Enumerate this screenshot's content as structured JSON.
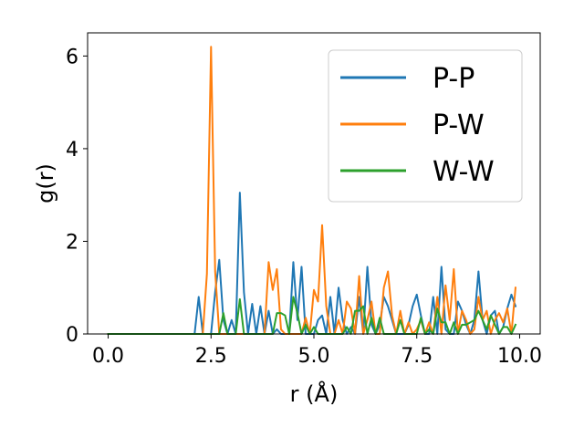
{
  "chart_data": {
    "type": "line",
    "xlabel": "r (Å)",
    "ylabel": "g(r)",
    "xlim": [
      -0.5,
      10.5
    ],
    "ylim": [
      0,
      6.5
    ],
    "xticks": [
      0.0,
      2.5,
      5.0,
      7.5,
      10.0
    ],
    "xtick_labels": [
      "0.0",
      "2.5",
      "5.0",
      "7.5",
      "10.0"
    ],
    "yticks": [
      0,
      2,
      4,
      6
    ],
    "ytick_labels": [
      "0",
      "2",
      "4",
      "6"
    ],
    "grid": false,
    "legend_position": "top-right",
    "colors": {
      "P-P": "#1f77b4",
      "P-W": "#ff7f0e",
      "W-W": "#2ca02c"
    },
    "series": [
      {
        "name": "P-P",
        "x": [
          0.0,
          2.1,
          2.2,
          2.3,
          2.4,
          2.5,
          2.6,
          2.7,
          2.8,
          2.9,
          3.0,
          3.1,
          3.2,
          3.3,
          3.4,
          3.5,
          3.6,
          3.7,
          3.8,
          3.9,
          4.0,
          4.1,
          4.2,
          4.3,
          4.4,
          4.5,
          4.6,
          4.7,
          4.8,
          4.9,
          5.0,
          5.1,
          5.2,
          5.3,
          5.4,
          5.5,
          5.6,
          5.7,
          5.8,
          5.9,
          6.0,
          6.1,
          6.2,
          6.3,
          6.4,
          6.5,
          6.6,
          6.7,
          6.8,
          6.9,
          7.0,
          7.1,
          7.2,
          7.3,
          7.4,
          7.5,
          7.6,
          7.7,
          7.8,
          7.9,
          8.0,
          8.1,
          8.2,
          8.3,
          8.4,
          8.5,
          8.6,
          8.7,
          8.8,
          8.9,
          9.0,
          9.1,
          9.2,
          9.3,
          9.4,
          9.5,
          9.6,
          9.7,
          9.8,
          9.9
        ],
        "y": [
          0.0,
          0.0,
          0.8,
          0.0,
          0.0,
          0.0,
          0.9,
          1.6,
          0.3,
          0.0,
          0.3,
          0.0,
          3.05,
          0.9,
          0.0,
          0.65,
          0.0,
          0.6,
          0.0,
          0.5,
          0.0,
          0.1,
          0.0,
          0.0,
          0.0,
          1.55,
          0.3,
          1.45,
          0.0,
          0.0,
          0.0,
          0.3,
          0.4,
          0.0,
          0.8,
          0.0,
          1.0,
          0.3,
          0.0,
          0.15,
          0.0,
          0.8,
          0.0,
          1.45,
          0.2,
          0.0,
          0.2,
          0.8,
          0.6,
          0.3,
          0.0,
          0.0,
          0.0,
          0.2,
          0.6,
          0.85,
          0.4,
          0.0,
          0.0,
          0.8,
          0.0,
          1.45,
          0.1,
          0.0,
          0.0,
          0.7,
          0.5,
          0.2,
          0.0,
          0.3,
          1.35,
          0.3,
          0.0,
          0.4,
          0.5,
          0.0,
          0.15,
          0.55,
          0.85,
          0.6
        ]
      },
      {
        "name": "P-W",
        "x": [
          0.0,
          2.3,
          2.4,
          2.5,
          2.6,
          2.7,
          2.8,
          2.9,
          3.0,
          3.1,
          3.2,
          3.3,
          3.4,
          3.5,
          3.6,
          3.7,
          3.8,
          3.9,
          4.0,
          4.1,
          4.2,
          4.3,
          4.4,
          4.5,
          4.6,
          4.7,
          4.8,
          4.9,
          5.0,
          5.1,
          5.2,
          5.3,
          5.4,
          5.5,
          5.6,
          5.7,
          5.8,
          5.9,
          6.0,
          6.1,
          6.2,
          6.3,
          6.4,
          6.5,
          6.6,
          6.7,
          6.8,
          6.9,
          7.0,
          7.1,
          7.2,
          7.3,
          7.4,
          7.5,
          7.6,
          7.7,
          7.8,
          7.9,
          8.0,
          8.1,
          8.2,
          8.3,
          8.4,
          8.5,
          8.6,
          8.7,
          8.8,
          8.9,
          9.0,
          9.1,
          9.2,
          9.3,
          9.4,
          9.5,
          9.6,
          9.7,
          9.8,
          9.9
        ],
        "y": [
          0.0,
          0.0,
          1.3,
          6.2,
          1.35,
          0.0,
          0.0,
          0.0,
          0.0,
          0.0,
          0.0,
          0.0,
          0.0,
          0.0,
          0.0,
          0.0,
          0.0,
          1.55,
          0.95,
          1.4,
          0.1,
          0.0,
          0.0,
          0.0,
          0.0,
          0.0,
          0.35,
          0.0,
          0.95,
          0.7,
          2.35,
          0.6,
          0.0,
          0.0,
          0.3,
          0.0,
          0.7,
          0.55,
          0.0,
          1.25,
          0.0,
          0.3,
          0.7,
          0.0,
          0.0,
          1.0,
          1.35,
          0.4,
          0.0,
          0.5,
          0.0,
          0.25,
          0.0,
          0.1,
          0.3,
          0.0,
          0.25,
          0.0,
          0.8,
          0.0,
          1.05,
          0.3,
          1.4,
          0.0,
          0.5,
          0.3,
          0.0,
          0.1,
          0.8,
          0.3,
          0.5,
          0.0,
          0.3,
          0.45,
          0.25,
          0.55,
          0.0,
          1.0
        ]
      },
      {
        "name": "W-W",
        "x": [
          0.0,
          2.6,
          2.7,
          2.8,
          2.9,
          3.0,
          3.1,
          3.2,
          3.3,
          3.4,
          3.5,
          3.6,
          3.7,
          3.8,
          3.9,
          4.0,
          4.1,
          4.2,
          4.3,
          4.4,
          4.5,
          4.6,
          4.7,
          4.8,
          4.9,
          5.0,
          5.1,
          5.2,
          5.3,
          5.4,
          5.5,
          5.6,
          5.7,
          5.8,
          5.9,
          6.0,
          6.1,
          6.2,
          6.3,
          6.4,
          6.5,
          6.6,
          6.7,
          6.8,
          6.9,
          7.0,
          7.1,
          7.2,
          7.3,
          7.4,
          7.5,
          7.6,
          7.7,
          7.8,
          7.9,
          8.0,
          8.1,
          8.2,
          8.3,
          8.4,
          8.5,
          8.6,
          8.7,
          8.8,
          8.9,
          9.0,
          9.1,
          9.2,
          9.3,
          9.4,
          9.5,
          9.6,
          9.7,
          9.8,
          9.9
        ],
        "y": [
          0.0,
          0.0,
          0.0,
          0.45,
          0.0,
          0.0,
          0.0,
          0.75,
          0.0,
          0.0,
          0.0,
          0.0,
          0.0,
          0.0,
          0.0,
          0.0,
          0.45,
          0.45,
          0.4,
          0.0,
          0.8,
          0.45,
          0.0,
          0.2,
          0.0,
          0.15,
          0.0,
          0.0,
          0.0,
          0.0,
          0.0,
          0.0,
          0.0,
          0.15,
          0.0,
          0.5,
          0.5,
          0.6,
          0.0,
          0.35,
          0.0,
          0.35,
          0.0,
          0.0,
          0.0,
          0.0,
          0.3,
          0.0,
          0.0,
          0.0,
          0.0,
          0.35,
          0.0,
          0.1,
          0.0,
          0.55,
          0.25,
          0.25,
          0.0,
          0.25,
          0.0,
          0.2,
          0.2,
          0.25,
          0.3,
          0.5,
          0.3,
          0.1,
          0.4,
          0.2,
          0.0,
          0.15,
          0.15,
          0.0,
          0.2
        ]
      }
    ]
  }
}
